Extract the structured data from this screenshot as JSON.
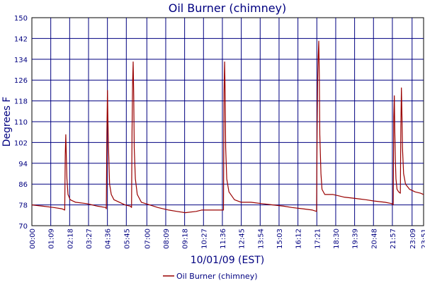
{
  "chart_data": {
    "type": "line",
    "title": "Oil Burner (chimney)",
    "xlabel": "10/01/09 (EST)",
    "ylabel": "Degrees F",
    "ylim": [
      70,
      150
    ],
    "yticks": [
      70,
      78,
      86,
      94,
      102,
      110,
      118,
      126,
      134,
      142,
      150
    ],
    "xlim": [
      "00:00",
      "23:51"
    ],
    "xticks": [
      "00:00",
      "01:09",
      "02:18",
      "03:27",
      "04:36",
      "05:45",
      "07:00",
      "08:09",
      "09:18",
      "10:27",
      "11:36",
      "12:45",
      "13:54",
      "15:03",
      "16:12",
      "17:21",
      "18:30",
      "19:39",
      "20:48",
      "21:57",
      "23:09",
      "23:51"
    ],
    "grid": true,
    "legend_position": "bottom",
    "series": [
      {
        "name": "Oil Burner (chimney)",
        "color": "#990000",
        "points": [
          [
            "00:00",
            78
          ],
          [
            "00:40",
            77.5
          ],
          [
            "01:20",
            77
          ],
          [
            "01:50",
            76.5
          ],
          [
            "02:00",
            76
          ],
          [
            "02:02",
            97
          ],
          [
            "02:04",
            105
          ],
          [
            "02:06",
            96
          ],
          [
            "02:08",
            88
          ],
          [
            "02:12",
            82
          ],
          [
            "02:20",
            80
          ],
          [
            "02:40",
            79
          ],
          [
            "03:20",
            78.5
          ],
          [
            "04:00",
            77.5
          ],
          [
            "04:30",
            77
          ],
          [
            "04:32",
            76.5
          ],
          [
            "04:34",
            106
          ],
          [
            "04:36",
            122
          ],
          [
            "04:38",
            110
          ],
          [
            "04:40",
            100
          ],
          [
            "04:44",
            86
          ],
          [
            "04:50",
            82
          ],
          [
            "05:00",
            80
          ],
          [
            "05:20",
            79
          ],
          [
            "05:40",
            78
          ],
          [
            "06:00",
            77.5
          ],
          [
            "06:04",
            77
          ],
          [
            "06:06",
            106
          ],
          [
            "06:08",
            125
          ],
          [
            "06:10",
            133
          ],
          [
            "06:12",
            120
          ],
          [
            "06:14",
            100
          ],
          [
            "06:18",
            88
          ],
          [
            "06:25",
            82
          ],
          [
            "06:40",
            79
          ],
          [
            "07:10",
            78
          ],
          [
            "07:40",
            77
          ],
          [
            "08:20",
            76
          ],
          [
            "08:50",
            75.5
          ],
          [
            "09:20",
            75
          ],
          [
            "10:00",
            75.5
          ],
          [
            "10:20",
            76
          ],
          [
            "11:00",
            76
          ],
          [
            "11:40",
            76
          ],
          [
            "11:42",
            121
          ],
          [
            "11:44",
            133
          ],
          [
            "11:46",
            122
          ],
          [
            "11:48",
            100
          ],
          [
            "11:52",
            88
          ],
          [
            "12:00",
            83
          ],
          [
            "12:20",
            80
          ],
          [
            "12:45",
            79
          ],
          [
            "13:20",
            79
          ],
          [
            "14:00",
            78.5
          ],
          [
            "14:40",
            78
          ],
          [
            "15:20",
            77.5
          ],
          [
            "15:50",
            77
          ],
          [
            "16:30",
            76.5
          ],
          [
            "17:05",
            76
          ],
          [
            "17:20",
            75.5
          ],
          [
            "17:22",
            106
          ],
          [
            "17:24",
            125
          ],
          [
            "17:26",
            135
          ],
          [
            "17:28",
            141
          ],
          [
            "17:30",
            128
          ],
          [
            "17:32",
            105
          ],
          [
            "17:36",
            90
          ],
          [
            "17:40",
            84
          ],
          [
            "17:50",
            82
          ],
          [
            "18:20",
            82
          ],
          [
            "18:40",
            81.5
          ],
          [
            "19:00",
            81
          ],
          [
            "19:40",
            80.5
          ],
          [
            "20:20",
            80
          ],
          [
            "20:50",
            79.5
          ],
          [
            "21:30",
            79
          ],
          [
            "21:55",
            78.5
          ],
          [
            "22:00",
            78
          ],
          [
            "22:02",
            112
          ],
          [
            "22:04",
            120
          ],
          [
            "22:06",
            106
          ],
          [
            "22:08",
            95
          ],
          [
            "22:10",
            88
          ],
          [
            "22:14",
            84
          ],
          [
            "22:20",
            83
          ],
          [
            "22:26",
            82.5
          ],
          [
            "22:28",
            108
          ],
          [
            "22:30",
            123
          ],
          [
            "22:32",
            112
          ],
          [
            "22:34",
            100
          ],
          [
            "22:38",
            90
          ],
          [
            "22:45",
            86
          ],
          [
            "23:00",
            84
          ],
          [
            "23:20",
            83
          ],
          [
            "23:40",
            82.5
          ],
          [
            "23:51",
            82
          ]
        ]
      }
    ]
  }
}
